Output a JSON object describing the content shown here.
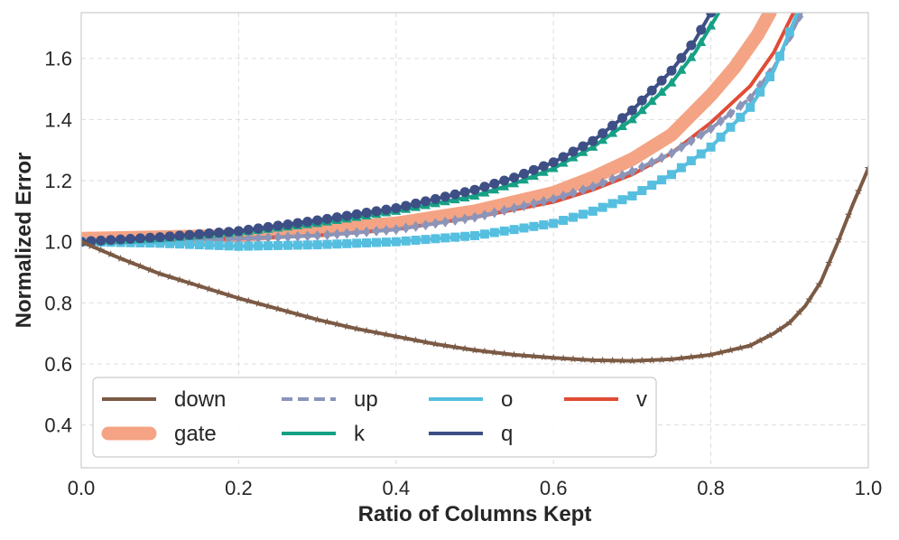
{
  "chart_data": {
    "type": "line",
    "title": "",
    "xlabel": "Ratio of Columns Kept",
    "ylabel": "Normalized Error",
    "xlim": [
      0.0,
      1.0
    ],
    "ylim": [
      0.26,
      1.75
    ],
    "xticks": [
      0.0,
      0.2,
      0.4,
      0.6,
      0.8,
      1.0
    ],
    "xtick_labels": [
      "0.0",
      "0.2",
      "0.4",
      "0.6",
      "0.8",
      "1.0"
    ],
    "yticks": [
      0.4,
      0.6,
      0.8,
      1.0,
      1.2,
      1.4,
      1.6
    ],
    "ytick_labels": [
      "0.4",
      "0.6",
      "0.8",
      "1.0",
      "1.2",
      "1.4",
      "1.6"
    ],
    "grid": true,
    "legend_position": "bottom-left",
    "series": [
      {
        "name": "down",
        "color": "#7b5a45",
        "marker": "star",
        "line": "solid",
        "width": 4,
        "points": [
          [
            0.0,
            1.0
          ],
          [
            0.05,
            0.945
          ],
          [
            0.1,
            0.895
          ],
          [
            0.15,
            0.855
          ],
          [
            0.2,
            0.815
          ],
          [
            0.25,
            0.78
          ],
          [
            0.3,
            0.745
          ],
          [
            0.35,
            0.715
          ],
          [
            0.4,
            0.69
          ],
          [
            0.45,
            0.665
          ],
          [
            0.5,
            0.645
          ],
          [
            0.55,
            0.63
          ],
          [
            0.6,
            0.62
          ],
          [
            0.65,
            0.612
          ],
          [
            0.7,
            0.61
          ],
          [
            0.75,
            0.615
          ],
          [
            0.8,
            0.63
          ],
          [
            0.85,
            0.66
          ],
          [
            0.88,
            0.7
          ],
          [
            0.9,
            0.735
          ],
          [
            0.92,
            0.79
          ],
          [
            0.94,
            0.87
          ],
          [
            0.96,
            0.99
          ],
          [
            0.98,
            1.12
          ],
          [
            1.0,
            1.24
          ]
        ]
      },
      {
        "name": "gate",
        "color": "#f4a484",
        "marker": "none",
        "line": "solid",
        "width": 15,
        "points": [
          [
            0.0,
            1.01
          ],
          [
            0.1,
            1.015
          ],
          [
            0.2,
            1.02
          ],
          [
            0.3,
            1.04
          ],
          [
            0.4,
            1.06
          ],
          [
            0.5,
            1.1
          ],
          [
            0.6,
            1.16
          ],
          [
            0.65,
            1.21
          ],
          [
            0.7,
            1.27
          ],
          [
            0.75,
            1.35
          ],
          [
            0.8,
            1.48
          ],
          [
            0.83,
            1.57
          ],
          [
            0.86,
            1.68
          ],
          [
            0.875,
            1.75
          ]
        ]
      },
      {
        "name": "up",
        "color": "#8c94b8",
        "marker": "diamond",
        "line": "dashed",
        "width": 4,
        "points": [
          [
            0.0,
            1.0
          ],
          [
            0.1,
            1.005
          ],
          [
            0.2,
            1.01
          ],
          [
            0.3,
            1.02
          ],
          [
            0.4,
            1.04
          ],
          [
            0.5,
            1.08
          ],
          [
            0.6,
            1.14
          ],
          [
            0.65,
            1.18
          ],
          [
            0.7,
            1.23
          ],
          [
            0.75,
            1.29
          ],
          [
            0.8,
            1.37
          ],
          [
            0.85,
            1.47
          ],
          [
            0.88,
            1.57
          ],
          [
            0.9,
            1.67
          ],
          [
            0.915,
            1.75
          ]
        ]
      },
      {
        "name": "k",
        "color": "#16a085",
        "marker": "triangle",
        "line": "solid",
        "width": 4,
        "points": [
          [
            0.0,
            1.0
          ],
          [
            0.1,
            1.01
          ],
          [
            0.2,
            1.03
          ],
          [
            0.3,
            1.06
          ],
          [
            0.4,
            1.1
          ],
          [
            0.5,
            1.15
          ],
          [
            0.55,
            1.19
          ],
          [
            0.6,
            1.24
          ],
          [
            0.65,
            1.31
          ],
          [
            0.7,
            1.4
          ],
          [
            0.75,
            1.52
          ],
          [
            0.78,
            1.62
          ],
          [
            0.81,
            1.75
          ]
        ]
      },
      {
        "name": "o",
        "color": "#56bfe0",
        "marker": "square",
        "line": "solid",
        "width": 4,
        "points": [
          [
            0.0,
            1.0
          ],
          [
            0.1,
            0.995
          ],
          [
            0.2,
            0.985
          ],
          [
            0.3,
            0.99
          ],
          [
            0.4,
            1.0
          ],
          [
            0.5,
            1.02
          ],
          [
            0.6,
            1.06
          ],
          [
            0.65,
            1.1
          ],
          [
            0.7,
            1.15
          ],
          [
            0.75,
            1.22
          ],
          [
            0.8,
            1.31
          ],
          [
            0.85,
            1.44
          ],
          [
            0.88,
            1.56
          ],
          [
            0.91,
            1.75
          ]
        ]
      },
      {
        "name": "q",
        "color": "#3d4f85",
        "marker": "circle",
        "line": "solid",
        "width": 4,
        "points": [
          [
            0.0,
            1.0
          ],
          [
            0.1,
            1.015
          ],
          [
            0.2,
            1.035
          ],
          [
            0.3,
            1.07
          ],
          [
            0.4,
            1.11
          ],
          [
            0.5,
            1.17
          ],
          [
            0.55,
            1.21
          ],
          [
            0.6,
            1.26
          ],
          [
            0.65,
            1.33
          ],
          [
            0.7,
            1.43
          ],
          [
            0.75,
            1.56
          ],
          [
            0.78,
            1.66
          ],
          [
            0.8,
            1.75
          ]
        ]
      },
      {
        "name": "v",
        "color": "#e04c35",
        "marker": "none",
        "line": "solid",
        "width": 4,
        "points": [
          [
            0.0,
            1.0
          ],
          [
            0.1,
            1.005
          ],
          [
            0.2,
            1.01
          ],
          [
            0.3,
            1.02
          ],
          [
            0.4,
            1.04
          ],
          [
            0.5,
            1.08
          ],
          [
            0.6,
            1.13
          ],
          [
            0.65,
            1.17
          ],
          [
            0.7,
            1.22
          ],
          [
            0.75,
            1.29
          ],
          [
            0.8,
            1.39
          ],
          [
            0.85,
            1.51
          ],
          [
            0.88,
            1.62
          ],
          [
            0.905,
            1.75
          ]
        ]
      }
    ],
    "legend": {
      "columns": [
        [
          "down",
          "gate"
        ],
        [
          "up",
          "k"
        ],
        [
          "o",
          "q"
        ],
        [
          "v"
        ]
      ]
    }
  }
}
